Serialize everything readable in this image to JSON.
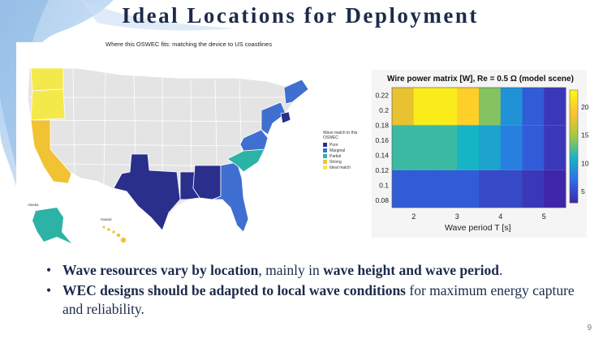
{
  "slide": {
    "title": "Ideal Locations for Deployment",
    "page_number": "9"
  },
  "map": {
    "subtitle": "Where this OSWEC fits: matching the device to US coastlines",
    "legend_title": "Wave match to this OSWEC",
    "legend": [
      {
        "label": "Poor",
        "color": "#2a2f8c"
      },
      {
        "label": "Marginal",
        "color": "#3f6fd0"
      },
      {
        "label": "Partial",
        "color": "#2db3a6"
      },
      {
        "label": "Strong",
        "color": "#f1c232"
      },
      {
        "label": "Ideal match",
        "color": "#f4e94a"
      }
    ],
    "inset_labels": {
      "alaska": "Alaska",
      "hawaii": "Hawaii"
    },
    "land_color": "#e4e4e4"
  },
  "chart_data": {
    "type": "heatmap",
    "title": "Wire power matrix [W], Re = 0.5 Ω (model scene)",
    "xlabel": "Wave period T [s]",
    "ylabel": "",
    "x_ticks": [
      2,
      3,
      4,
      5
    ],
    "y_ticks": [
      0.08,
      0.1,
      0.12,
      0.14,
      0.16,
      0.18,
      0.2,
      0.22
    ],
    "x_cells": [
      1.75,
      2.25,
      2.75,
      3.25,
      3.75,
      4.25,
      4.75,
      5.25
    ],
    "y_bands": [
      {
        "range": [
          0.18,
          0.23
        ],
        "values": [
          18,
          22,
          22,
          20,
          14,
          9,
          6,
          4
        ]
      },
      {
        "range": [
          0.12,
          0.18
        ],
        "values": [
          12,
          12,
          12,
          11,
          10,
          8,
          6,
          4
        ]
      },
      {
        "range": [
          0.07,
          0.12
        ],
        "values": [
          6,
          6,
          6,
          6,
          5,
          5,
          4,
          3
        ]
      }
    ],
    "colorbar_ticks": [
      5,
      10,
      15,
      20
    ],
    "colorbar_range": [
      3,
      23
    ],
    "colorscale": [
      "#3e26a8",
      "#2d6ee8",
      "#16b5c5",
      "#a8c83d",
      "#fec02e",
      "#f9fb15"
    ]
  },
  "bullets": [
    {
      "bold": "Wave resources vary by location",
      "normal": ", mainly in ",
      "bold2": "wave height and wave period",
      "normal2": "."
    },
    {
      "bold": "WEC designs should be adapted to local wave conditions",
      "normal": " for maximum energy capture and reliability.",
      "bold2": "",
      "normal2": ""
    }
  ]
}
